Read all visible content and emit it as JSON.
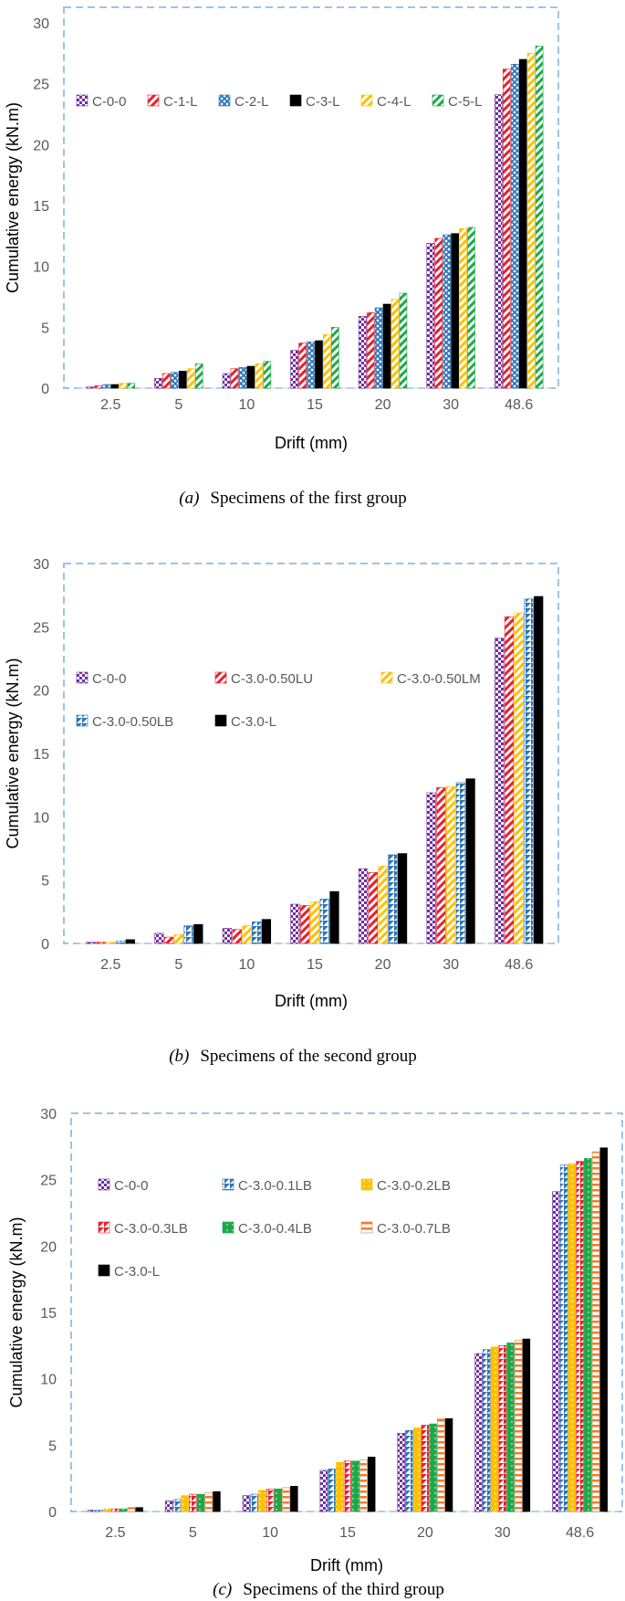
{
  "palette": {
    "C-0-0": "#7030a0",
    "C-1-L": "#e8202a",
    "C-2-L": "#2e75b6",
    "C-3-L": "#000000",
    "C-3.0-L": "#000000",
    "C-4-L": "#ffc000",
    "C-5-L": "#1ea84a",
    "C-3.0-0.50LU": "#e8202a",
    "C-3.0-0.50LM": "#ffc000",
    "C-3.0-0.50LB": "#2e75b6",
    "C-3.0-0.1LB": "#2e75b6",
    "C-3.0-0.2LB": "#ffc000",
    "C-3.0-0.3LB": "#e8202a",
    "C-3.0-0.4LB": "#1ea84a",
    "C-3.0-0.7LB": "#ed7d31",
    "border": "#9dc3e6"
  },
  "chart_data": [
    {
      "type": "bar",
      "caption_label": "(a)",
      "caption_text": "Specimens of the first group",
      "xlabel": "Drift (mm)",
      "ylabel": "Cumulative energy (kN.m)",
      "ylim": [
        0,
        30
      ],
      "yticks": [
        "0",
        "5",
        "10",
        "15",
        "20",
        "25",
        "30"
      ],
      "legend_position": "top-left",
      "categories": [
        "2.5",
        "5",
        "10",
        "15",
        "20",
        "30",
        "48.6"
      ],
      "series": [
        {
          "name": "C-0-0",
          "pattern": "checker",
          "values": [
            0.1,
            0.8,
            1.2,
            3.1,
            5.9,
            11.9,
            24.1
          ]
        },
        {
          "name": "C-1-L",
          "pattern": "diag",
          "values": [
            0.2,
            1.2,
            1.6,
            3.7,
            6.2,
            12.3,
            26.2
          ]
        },
        {
          "name": "C-2-L",
          "pattern": "cross",
          "values": [
            0.3,
            1.3,
            1.7,
            3.8,
            6.6,
            12.6,
            26.6
          ]
        },
        {
          "name": "C-3-L",
          "pattern": "solid",
          "values": [
            0.3,
            1.4,
            1.8,
            3.9,
            6.9,
            12.7,
            27.0
          ]
        },
        {
          "name": "C-4-L",
          "pattern": "diag",
          "values": [
            0.4,
            1.6,
            2.0,
            4.4,
            7.3,
            13.1,
            27.5
          ]
        },
        {
          "name": "C-5-L",
          "pattern": "diag",
          "values": [
            0.4,
            2.0,
            2.2,
            5.0,
            7.8,
            13.2,
            28.1
          ]
        }
      ]
    },
    {
      "type": "bar",
      "caption_label": "(b)",
      "caption_text": "Specimens of the second group",
      "xlabel": "Drift (mm)",
      "ylabel": "Cumulative energy (kN.m)",
      "ylim": [
        0,
        30
      ],
      "yticks": [
        "0",
        "5",
        "10",
        "15",
        "20",
        "25",
        "30"
      ],
      "legend_position": "top-left",
      "categories": [
        "2.5",
        "5",
        "10",
        "15",
        "20",
        "30",
        "48.6"
      ],
      "series": [
        {
          "name": "C-0-0",
          "pattern": "checker",
          "values": [
            0.1,
            0.8,
            1.2,
            3.1,
            5.9,
            11.9,
            24.1
          ]
        },
        {
          "name": "C-3.0-0.50LU",
          "pattern": "diag",
          "values": [
            0.1,
            0.5,
            1.1,
            3.0,
            5.6,
            12.3,
            25.8
          ]
        },
        {
          "name": "C-3.0-0.50LM",
          "pattern": "diag",
          "values": [
            0.1,
            0.7,
            1.4,
            3.3,
            6.1,
            12.4,
            26.1
          ]
        },
        {
          "name": "C-3.0-0.50LB",
          "pattern": "half",
          "values": [
            0.2,
            1.4,
            1.7,
            3.5,
            7.0,
            12.7,
            27.2
          ]
        },
        {
          "name": "C-3.0-L",
          "pattern": "solid",
          "values": [
            0.3,
            1.5,
            1.9,
            4.1,
            7.1,
            13.0,
            27.4
          ]
        }
      ]
    },
    {
      "type": "bar",
      "caption_label": "(c)",
      "caption_text": "Specimens of the third group",
      "xlabel": "Drift (mm)",
      "ylabel": "Cumulative energy (kN.m)",
      "ylim": [
        0,
        30
      ],
      "yticks": [
        "0",
        "5",
        "10",
        "15",
        "20",
        "25",
        "30"
      ],
      "legend_position": "top-left",
      "categories": [
        "2.5",
        "5",
        "10",
        "15",
        "20",
        "30",
        "48.6"
      ],
      "series": [
        {
          "name": "C-0-0",
          "pattern": "checker",
          "values": [
            0.1,
            0.8,
            1.2,
            3.1,
            5.9,
            11.9,
            24.1
          ]
        },
        {
          "name": "C-3.0-0.1LB",
          "pattern": "half",
          "values": [
            0.1,
            0.9,
            1.3,
            3.2,
            6.1,
            12.2,
            26.1
          ]
        },
        {
          "name": "C-3.0-0.2LB",
          "pattern": "dots",
          "values": [
            0.2,
            1.2,
            1.6,
            3.7,
            6.3,
            12.4,
            26.2
          ]
        },
        {
          "name": "C-3.0-0.3LB",
          "pattern": "half",
          "values": [
            0.2,
            1.3,
            1.7,
            3.8,
            6.5,
            12.5,
            26.4
          ]
        },
        {
          "name": "C-3.0-0.4LB",
          "pattern": "dots",
          "values": [
            0.2,
            1.3,
            1.7,
            3.8,
            6.6,
            12.7,
            26.6
          ]
        },
        {
          "name": "C-3.0-0.7LB",
          "pattern": "hstripe",
          "values": [
            0.3,
            1.4,
            1.8,
            3.9,
            7.0,
            12.9,
            27.1
          ]
        },
        {
          "name": "C-3.0-L",
          "pattern": "solid",
          "values": [
            0.3,
            1.5,
            1.9,
            4.1,
            7.0,
            13.0,
            27.4
          ]
        }
      ]
    }
  ]
}
